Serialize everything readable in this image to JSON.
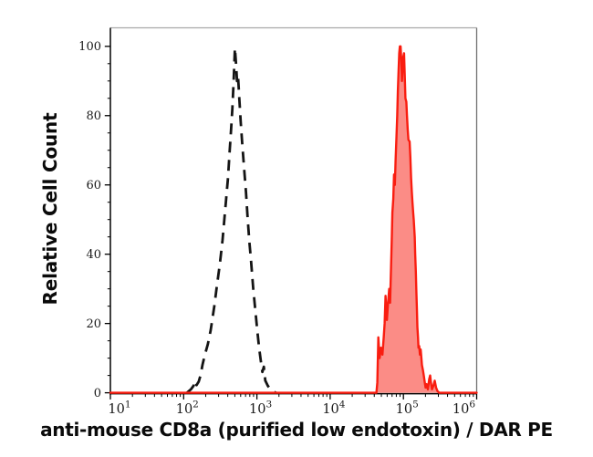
{
  "figure": {
    "xlabel": "anti-mouse CD8a (purified low endotoxin) / DAR PE",
    "ylabel": "Relative Cell Count"
  },
  "chart_data": {
    "type": "area",
    "title": "",
    "xlabel": "anti-mouse CD8a (purified low endotoxin) / DAR PE",
    "ylabel": "Relative Cell Count",
    "x_scale": "log10",
    "xlim_log10": [
      1,
      6
    ],
    "ylim": [
      0,
      100
    ],
    "grid": false,
    "legend": "none",
    "x_ticks": [
      {
        "base": "10",
        "exp": "1"
      },
      {
        "base": "10",
        "exp": "2"
      },
      {
        "base": "10",
        "exp": "3"
      },
      {
        "base": "10",
        "exp": "4"
      },
      {
        "base": "10",
        "exp": "5"
      },
      {
        "base": "10",
        "exp": "6"
      }
    ],
    "y_ticks": [
      "0",
      "20",
      "40",
      "60",
      "80",
      "100"
    ],
    "y_minor_step": 5,
    "frame": {
      "top_color": "#a8a8a8",
      "right_color": "#707070",
      "axis_color": "#000000"
    },
    "series": [
      {
        "name": "dashed-black-curve",
        "description": "unstained control histogram, peak near 5e2",
        "line_style": "dashed",
        "stroke": "#141414",
        "fill": "none",
        "points_log10x_y": [
          [
            2.045,
            0
          ],
          [
            2.1,
            1
          ],
          [
            2.135,
            2
          ],
          [
            2.155,
            3.5
          ],
          [
            2.175,
            2.2
          ],
          [
            2.205,
            3.2
          ],
          [
            2.23,
            5
          ],
          [
            2.256,
            8
          ],
          [
            2.29,
            11
          ],
          [
            2.33,
            14
          ],
          [
            2.368,
            18
          ],
          [
            2.418,
            25
          ],
          [
            2.455,
            31
          ],
          [
            2.493,
            37
          ],
          [
            2.53,
            44
          ],
          [
            2.555,
            50
          ],
          [
            2.58,
            56
          ],
          [
            2.605,
            62
          ],
          [
            2.629,
            70
          ],
          [
            2.648,
            76
          ],
          [
            2.665,
            82
          ],
          [
            2.682,
            90
          ],
          [
            2.7,
            99.5
          ],
          [
            2.715,
            95
          ],
          [
            2.728,
            90
          ],
          [
            2.742,
            91.5
          ],
          [
            2.76,
            85
          ],
          [
            2.78,
            78
          ],
          [
            2.8,
            72
          ],
          [
            2.825,
            65
          ],
          [
            2.85,
            58
          ],
          [
            2.872,
            51
          ],
          [
            2.895,
            44
          ],
          [
            2.92,
            38
          ],
          [
            2.95,
            30
          ],
          [
            2.978,
            24
          ],
          [
            3.005,
            18
          ],
          [
            3.03,
            13
          ],
          [
            3.055,
            9
          ],
          [
            3.075,
            6
          ],
          [
            3.095,
            7.5
          ],
          [
            3.115,
            3.5
          ],
          [
            3.15,
            2
          ],
          [
            3.185,
            1
          ],
          [
            3.22,
            0.4
          ],
          [
            3.26,
            0
          ]
        ]
      },
      {
        "name": "red-filled-curve",
        "description": "anti-CD8a PE stained histogram, peak near 9e4",
        "line_style": "solid",
        "stroke": "#f91d10",
        "fill": "rgba(248,45,35,0.55)",
        "points_log10x_y": [
          [
            1.0,
            0
          ],
          [
            4.6,
            0
          ],
          [
            4.632,
            0
          ],
          [
            4.644,
            3
          ],
          [
            4.657,
            16
          ],
          [
            4.675,
            10
          ],
          [
            4.694,
            13
          ],
          [
            4.713,
            11
          ],
          [
            4.731,
            16
          ],
          [
            4.744,
            20
          ],
          [
            4.756,
            28
          ],
          [
            4.775,
            21
          ],
          [
            4.787,
            25
          ],
          [
            4.806,
            30
          ],
          [
            4.818,
            26
          ],
          [
            4.831,
            36
          ],
          [
            4.841,
            44
          ],
          [
            4.849,
            52
          ],
          [
            4.862,
            56
          ],
          [
            4.872,
            63
          ],
          [
            4.883,
            60
          ],
          [
            4.893,
            67
          ],
          [
            4.905,
            74
          ],
          [
            4.915,
            80
          ],
          [
            4.924,
            87
          ],
          [
            4.934,
            93
          ],
          [
            4.943,
            98
          ],
          [
            4.951,
            100
          ],
          [
            4.961,
            100
          ],
          [
            4.971,
            96
          ],
          [
            4.98,
            90
          ],
          [
            4.99,
            94
          ],
          [
            4.999,
            97
          ],
          [
            5.009,
            98
          ],
          [
            5.017,
            92
          ],
          [
            5.027,
            85
          ],
          [
            5.04,
            84
          ],
          [
            5.048,
            80
          ],
          [
            5.058,
            76
          ],
          [
            5.069,
            73
          ],
          [
            5.085,
            72.5
          ],
          [
            5.095,
            68
          ],
          [
            5.104,
            62
          ],
          [
            5.114,
            58
          ],
          [
            5.123,
            55
          ],
          [
            5.133,
            52
          ],
          [
            5.141,
            50
          ],
          [
            5.154,
            45
          ],
          [
            5.161,
            40
          ],
          [
            5.169,
            35
          ],
          [
            5.176,
            30
          ],
          [
            5.184,
            24
          ],
          [
            5.191,
            19
          ],
          [
            5.199,
            16
          ],
          [
            5.206,
            13
          ],
          [
            5.216,
            13.5
          ],
          [
            5.226,
            11
          ],
          [
            5.235,
            12.5
          ],
          [
            5.245,
            10
          ],
          [
            5.253,
            8
          ],
          [
            5.266,
            6.5
          ],
          [
            5.278,
            5
          ],
          [
            5.291,
            3
          ],
          [
            5.303,
            1.5
          ],
          [
            5.315,
            2.5
          ],
          [
            5.334,
            1
          ],
          [
            5.353,
            4
          ],
          [
            5.365,
            5
          ],
          [
            5.378,
            2.5
          ],
          [
            5.39,
            1
          ],
          [
            5.409,
            2
          ],
          [
            5.427,
            3.5
          ],
          [
            5.446,
            1.5
          ],
          [
            5.465,
            0.5
          ],
          [
            5.49,
            0
          ],
          [
            6.0,
            0
          ]
        ]
      }
    ]
  }
}
